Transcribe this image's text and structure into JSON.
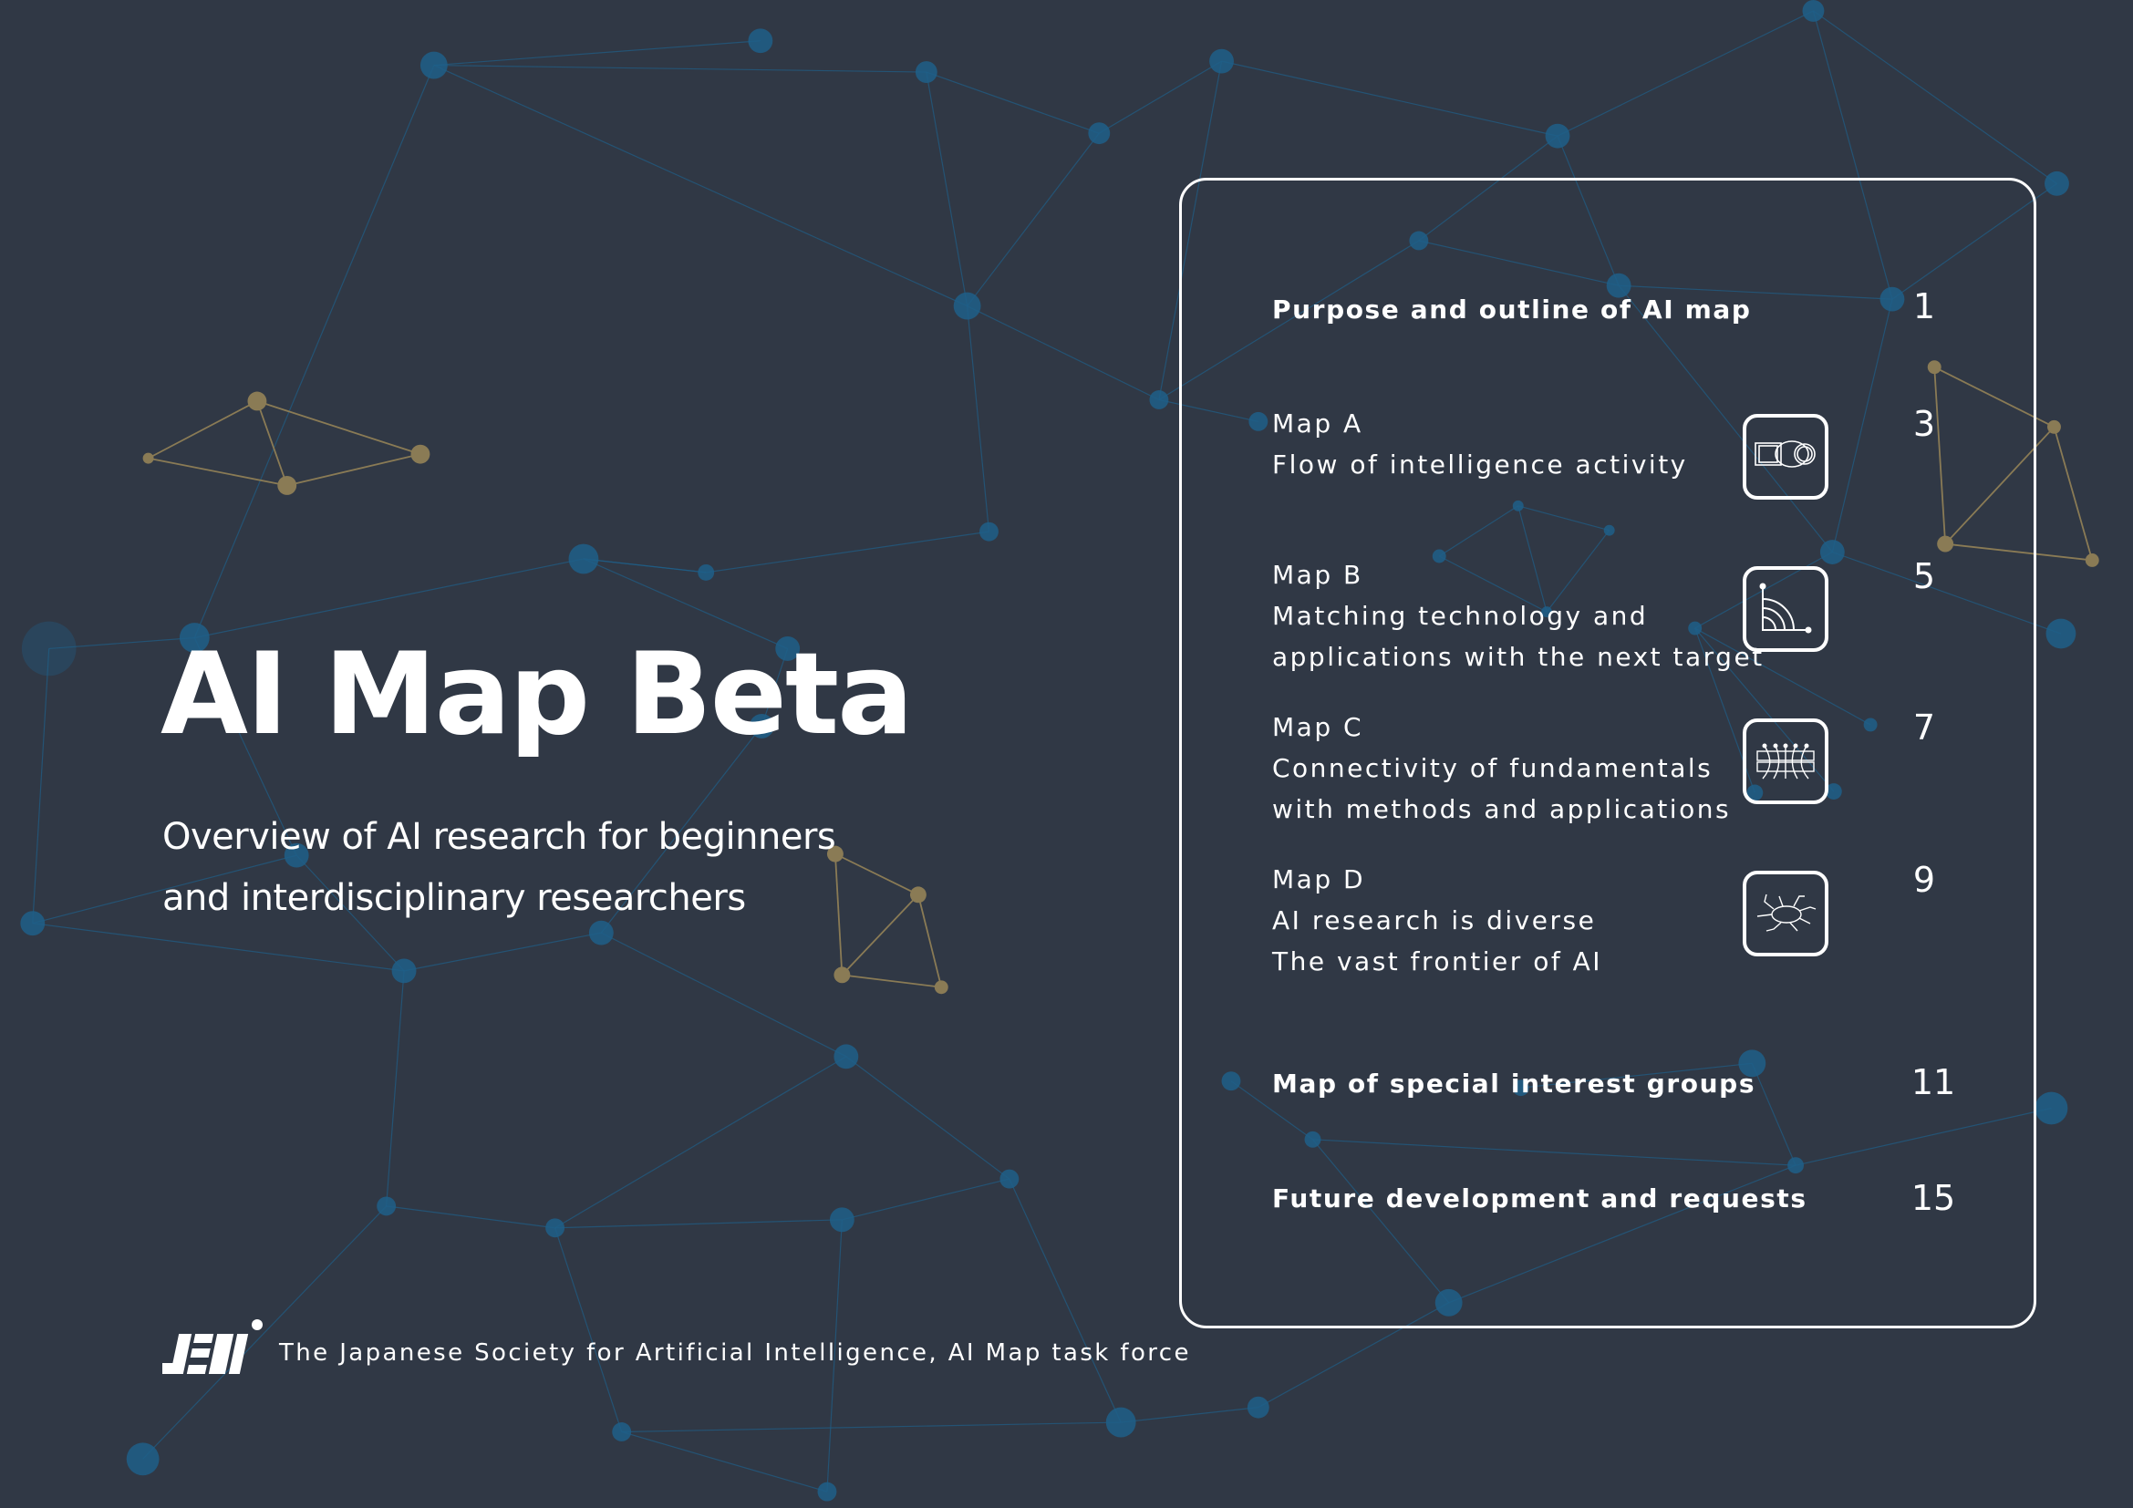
{
  "colors": {
    "background": "#303845",
    "network_blue": "#1f5f88",
    "network_gold": "#8a7b55",
    "text": "#ffffff"
  },
  "cover": {
    "title": "AI Map Beta",
    "subtitle": [
      "Overview of AI research for beginners",
      "and interdisciplinary researchers"
    ]
  },
  "toc": {
    "items": [
      {
        "lines": [
          "Purpose and outline of AI map"
        ],
        "page": "1",
        "bold": true
      },
      {
        "lines": [
          "Map A",
          "Flow of intelligence activity"
        ],
        "page": "3",
        "icon": "flow-icon"
      },
      {
        "lines": [
          "Map B",
          "Matching technology and",
          "applications with the next target"
        ],
        "page": "5",
        "icon": "target-arc-icon"
      },
      {
        "lines": [
          "Map C",
          "Connectivity of fundamentals",
          "with methods and applications"
        ],
        "page": "7",
        "icon": "connectivity-icon"
      },
      {
        "lines": [
          "Map D",
          "AI research is diverse",
          "The vast frontier of AI"
        ],
        "page": "9",
        "icon": "frontier-bug-icon"
      },
      {
        "lines": [
          "Map of special interest groups"
        ],
        "page": "11",
        "bold": true
      },
      {
        "lines": [
          "Future development and requests"
        ],
        "page": "15",
        "bold": true
      }
    ]
  },
  "footer": {
    "logo": "JSAI",
    "text": "The Japanese Society for Artificial Intelligence, AI Map task force"
  }
}
